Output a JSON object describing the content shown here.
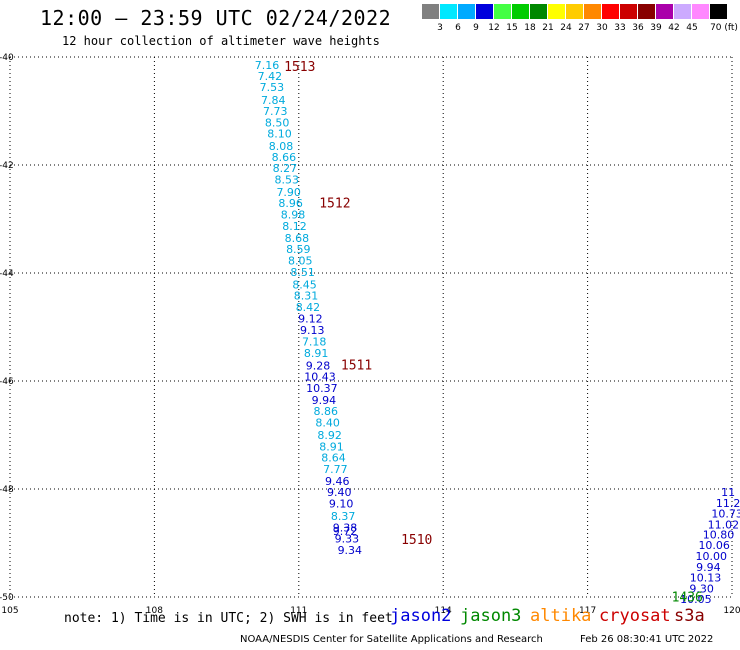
{
  "title": "12:00 – 23:59 UTC 02/24/2022",
  "subtitle": "12 hour collection of altimeter wave heights",
  "legend": {
    "colors": [
      "#808080",
      "#00e8ff",
      "#00aaff",
      "#0000dd",
      "#44ff44",
      "#00cc00",
      "#008800",
      "#ffff00",
      "#ffcc00",
      "#ff8800",
      "#ff0000",
      "#cc0000",
      "#880000",
      "#aa00aa",
      "#ccaaff",
      "#ff88ff",
      "#000000"
    ],
    "labels": [
      "3",
      "6",
      "9",
      "12",
      "15",
      "18",
      "21",
      "24",
      "27",
      "30",
      "33",
      "36",
      "39",
      "42",
      "45",
      "70 (ft)"
    ]
  },
  "chart_data": {
    "type": "scatter",
    "xlim": [
      105,
      120
    ],
    "ylim": [
      -50,
      -40
    ],
    "xticks": [
      "105",
      "108",
      "111",
      "114",
      "117",
      "120"
    ],
    "yticks": [
      "-40",
      "-42",
      "-44",
      "-46",
      "-48",
      "-50"
    ],
    "grid": true,
    "series": [
      {
        "name": "jason2",
        "color": "#0000cc",
        "labels": [
          {
            "x": 110.34,
            "y": -40.15,
            "v": "7.16",
            "c": "#00aadd"
          },
          {
            "x": 110.4,
            "y": -40.35,
            "v": "7.42",
            "c": "#00aadd"
          },
          {
            "x": 110.44,
            "y": -40.56,
            "v": "7.53",
            "c": "#00aadd"
          },
          {
            "x": 110.47,
            "y": -40.8,
            "v": "7.84",
            "c": "#00aadd"
          },
          {
            "x": 110.51,
            "y": -41.0,
            "v": "7.73",
            "c": "#00aadd"
          },
          {
            "x": 110.55,
            "y": -41.21,
            "v": "8.50",
            "c": "#00aadd"
          },
          {
            "x": 110.6,
            "y": -41.42,
            "v": "8.10",
            "c": "#00aadd"
          },
          {
            "x": 110.63,
            "y": -41.65,
            "v": "8.08",
            "c": "#00aadd"
          },
          {
            "x": 110.69,
            "y": -41.85,
            "v": "8.66",
            "c": "#00aadd"
          },
          {
            "x": 110.71,
            "y": -42.06,
            "v": "8.27",
            "c": "#00aadd"
          },
          {
            "x": 110.75,
            "y": -42.27,
            "v": "8.53",
            "c": "#00aadd"
          },
          {
            "x": 110.79,
            "y": -42.5,
            "v": "7.90",
            "c": "#00aadd"
          },
          {
            "x": 110.83,
            "y": -42.7,
            "v": "8.96",
            "c": "#00aadd"
          },
          {
            "x": 110.88,
            "y": -42.92,
            "v": "8.98",
            "c": "#00aadd"
          },
          {
            "x": 110.91,
            "y": -43.13,
            "v": "8.12",
            "c": "#00aadd"
          },
          {
            "x": 110.96,
            "y": -43.35,
            "v": "8.68",
            "c": "#00aadd"
          },
          {
            "x": 110.99,
            "y": -43.56,
            "v": "8.59",
            "c": "#00aadd"
          },
          {
            "x": 111.03,
            "y": -43.77,
            "v": "8.05",
            "c": "#00aadd"
          },
          {
            "x": 111.08,
            "y": -43.98,
            "v": "8.51",
            "c": "#00aadd"
          },
          {
            "x": 111.12,
            "y": -44.21,
            "v": "8.45",
            "c": "#00aadd"
          },
          {
            "x": 111.15,
            "y": -44.42,
            "v": "8.31",
            "c": "#00aadd"
          },
          {
            "x": 111.19,
            "y": -44.63,
            "v": "8.42",
            "c": "#00aadd"
          },
          {
            "x": 111.24,
            "y": -44.84,
            "v": "9.12",
            "c": "#0000cc"
          },
          {
            "x": 111.28,
            "y": -45.06,
            "v": "9.13",
            "c": "#0000cc"
          },
          {
            "x": 111.32,
            "y": -45.27,
            "v": "7.18",
            "c": "#00aadd"
          },
          {
            "x": 111.36,
            "y": -45.48,
            "v": "8.91",
            "c": "#00aadd"
          },
          {
            "x": 111.4,
            "y": -45.71,
            "v": "9.28",
            "c": "#0000cc"
          },
          {
            "x": 111.44,
            "y": -45.92,
            "v": "10.43",
            "c": "#0000cc"
          },
          {
            "x": 111.48,
            "y": -46.13,
            "v": "10.37",
            "c": "#0000cc"
          },
          {
            "x": 111.52,
            "y": -46.35,
            "v": "9.94",
            "c": "#0000cc"
          },
          {
            "x": 111.56,
            "y": -46.56,
            "v": "8.86",
            "c": "#00aadd"
          },
          {
            "x": 111.6,
            "y": -46.77,
            "v": "8.40",
            "c": "#00aadd"
          },
          {
            "x": 111.64,
            "y": -47.0,
            "v": "8.92",
            "c": "#00aadd"
          },
          {
            "x": 111.68,
            "y": -47.21,
            "v": "8.91",
            "c": "#00aadd"
          },
          {
            "x": 111.72,
            "y": -47.42,
            "v": "8.64",
            "c": "#00aadd"
          },
          {
            "x": 111.76,
            "y": -47.63,
            "v": "7.77",
            "c": "#00aadd"
          },
          {
            "x": 111.8,
            "y": -47.85,
            "v": "9.46",
            "c": "#0000cc"
          },
          {
            "x": 111.84,
            "y": -48.06,
            "v": "9.40",
            "c": "#0000cc"
          },
          {
            "x": 111.88,
            "y": -48.27,
            "v": "9.10",
            "c": "#0000cc"
          },
          {
            "x": 111.92,
            "y": -48.5,
            "v": "8.37",
            "c": "#00aadd"
          },
          {
            "x": 111.96,
            "y": -48.71,
            "v": "9.38",
            "c": "#0000cc"
          },
          {
            "x": 111.96,
            "y": -48.78,
            "v": "9.72",
            "c": "#0000cc"
          },
          {
            "x": 112.0,
            "y": -48.92,
            "v": "9.33",
            "c": "#0000cc"
          },
          {
            "x": 112.06,
            "y": -49.13,
            "v": "9.34",
            "c": "#0000cc"
          }
        ]
      },
      {
        "name": "jason3",
        "color": "#0000cc",
        "labels": [
          {
            "x": 119.92,
            "y": -48.06,
            "v": "11",
            "c": "#0000cc"
          },
          {
            "x": 119.92,
            "y": -48.26,
            "v": "11.2",
            "c": "#0000cc"
          },
          {
            "x": 119.9,
            "y": -48.45,
            "v": "10.73",
            "c": "#0000cc"
          },
          {
            "x": 119.82,
            "y": -48.66,
            "v": "11.02",
            "c": "#0000cc"
          },
          {
            "x": 119.72,
            "y": -48.84,
            "v": "10.80",
            "c": "#0000cc"
          },
          {
            "x": 119.63,
            "y": -49.04,
            "v": "10.06",
            "c": "#0000cc"
          },
          {
            "x": 119.57,
            "y": -49.24,
            "v": "10.00",
            "c": "#0000cc"
          },
          {
            "x": 119.51,
            "y": -49.44,
            "v": "9.94",
            "c": "#0000cc"
          },
          {
            "x": 119.45,
            "y": -49.64,
            "v": "10.13",
            "c": "#0000cc"
          },
          {
            "x": 119.37,
            "y": -49.84,
            "v": "9.30",
            "c": "#0000cc"
          },
          {
            "x": 119.25,
            "y": -50.04,
            "v": "10.05",
            "c": "#0000cc"
          }
        ]
      }
    ],
    "time_labels": [
      {
        "x": 111.02,
        "y": -40.17,
        "v": "1513",
        "c": "#880000"
      },
      {
        "x": 111.75,
        "y": -42.69,
        "v": "1512",
        "c": "#880000"
      },
      {
        "x": 112.2,
        "y": -45.69,
        "v": "1511",
        "c": "#880000"
      },
      {
        "x": 113.45,
        "y": -48.93,
        "v": "1510",
        "c": "#880000"
      },
      {
        "x": 119.07,
        "y": -49.99,
        "v": "1436",
        "c": "#008800"
      }
    ]
  },
  "footer": {
    "note": "note:  1) Time is in UTC;  2) SWH is in feet",
    "sats": [
      {
        "name": "jason2",
        "color": "#0000dd"
      },
      {
        "name": "jason3",
        "color": "#008800"
      },
      {
        "name": "altika",
        "color": "#ff8800"
      },
      {
        "name": "cryosat",
        "color": "#cc0000"
      },
      {
        "name": "s3a",
        "color": "#880000"
      }
    ],
    "credit": "NOAA/NESDIS Center for Satellite Applications and Research",
    "stamp": "Feb 26 08:30:41 UTC 2022"
  }
}
